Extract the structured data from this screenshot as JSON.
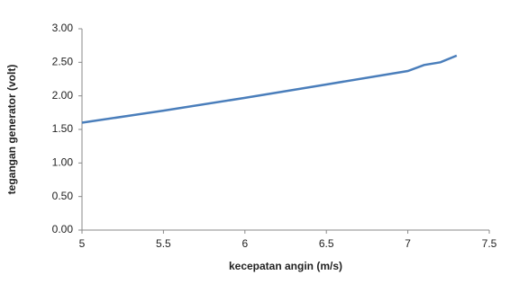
{
  "chart_data": {
    "type": "line",
    "x_label": "kecepatan angin (m/s)",
    "y_label": "tegangan generator (volt)",
    "x": [
      5,
      5.5,
      6,
      6.5,
      7,
      7.1,
      7.2,
      7.3
    ],
    "series": [
      {
        "color": "#4a7ebb",
        "values": [
          1.6,
          1.78,
          1.97,
          2.17,
          2.37,
          2.46,
          2.5,
          2.6
        ]
      }
    ],
    "xlim": [
      5,
      7.5
    ],
    "xticks": [
      5,
      5.5,
      6,
      6.5,
      7,
      7.5
    ],
    "ylim": [
      0,
      3
    ],
    "yticks": [
      {
        "value": 0,
        "label": "0.00"
      },
      {
        "value": 0.5,
        "label": "0.50"
      },
      {
        "value": 1,
        "label": "1.00"
      },
      {
        "value": 1.5,
        "label": "1.50"
      },
      {
        "value": 2,
        "label": "2.00"
      },
      {
        "value": 2.5,
        "label": "2.50"
      },
      {
        "value": 3,
        "label": "3.00"
      }
    ]
  }
}
